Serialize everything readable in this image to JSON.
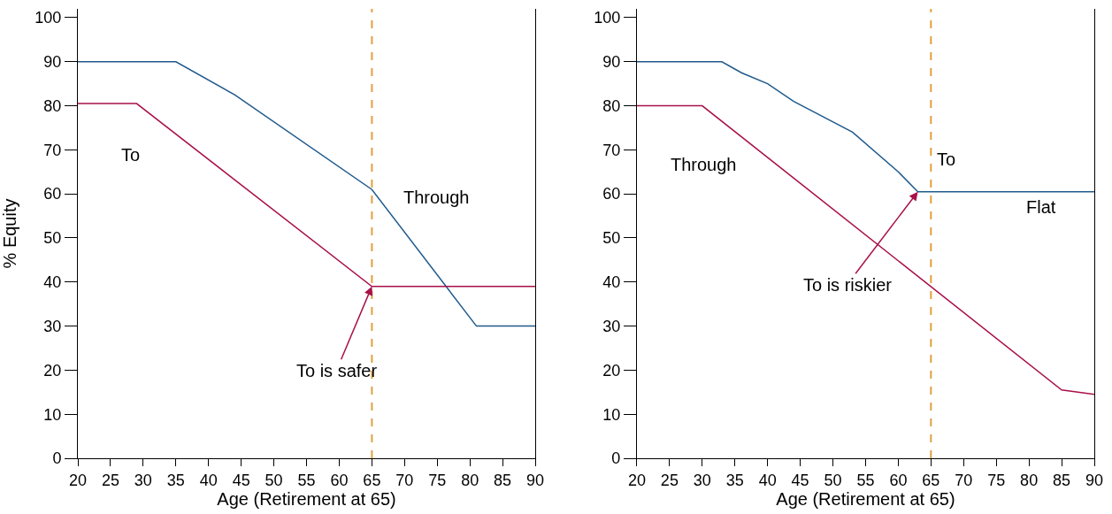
{
  "chart_data": [
    {
      "type": "line",
      "ylabel": "% Equity",
      "xlabel": "Age (Retirement at 65)",
      "xlim": [
        20,
        90
      ],
      "ylim": [
        0,
        102
      ],
      "xticks": [
        20,
        25,
        30,
        35,
        40,
        45,
        50,
        55,
        60,
        65,
        70,
        75,
        80,
        85,
        90
      ],
      "yticks": [
        0,
        10,
        20,
        30,
        40,
        50,
        60,
        70,
        80,
        90,
        100
      ],
      "marker": "none",
      "line_style": "solid",
      "series": [
        {
          "color": "#1f5a8c",
          "x": [
            20,
            35,
            44,
            65,
            81,
            90
          ],
          "values": [
            90,
            90,
            82.5,
            61,
            30,
            30
          ]
        },
        {
          "color": "#a8114a",
          "x": [
            20,
            29,
            65,
            90
          ],
          "values": [
            80.5,
            80.5,
            39,
            39
          ]
        }
      ],
      "ref_lines": [
        {
          "axis": "x",
          "value": 65,
          "color": "#e0a040",
          "line_style": "dashed"
        }
      ],
      "annotations": [
        "To",
        "Through",
        {
          "text": "To is safer",
          "x": 65,
          "y": 39
        }
      ]
    },
    {
      "type": "line",
      "xlabel": "Age (Retirement at 65)",
      "xlim": [
        20,
        90
      ],
      "ylim": [
        0,
        102
      ],
      "xticks": [
        20,
        25,
        30,
        35,
        40,
        45,
        50,
        55,
        60,
        65,
        70,
        75,
        80,
        85,
        90
      ],
      "yticks": [
        0,
        10,
        20,
        30,
        40,
        50,
        60,
        70,
        80,
        90,
        100
      ],
      "marker": "none",
      "line_style": "solid",
      "series": [
        {
          "color": "#1f5a8c",
          "x": [
            20,
            33,
            36,
            40,
            44,
            53,
            60,
            63,
            90
          ],
          "values": [
            90,
            90,
            87.5,
            85,
            81,
            74,
            65,
            60.5,
            60.5
          ]
        },
        {
          "color": "#a8114a",
          "x": [
            20,
            30,
            85,
            90
          ],
          "values": [
            80,
            80,
            15.5,
            14.5
          ]
        }
      ],
      "ref_lines": [
        {
          "axis": "x",
          "value": 65,
          "color": "#e0a040",
          "line_style": "dashed"
        }
      ],
      "annotations": [
        "Through",
        "To",
        "Flat",
        {
          "text": "To is riskier",
          "x": 63,
          "y": 60.5
        }
      ]
    }
  ]
}
